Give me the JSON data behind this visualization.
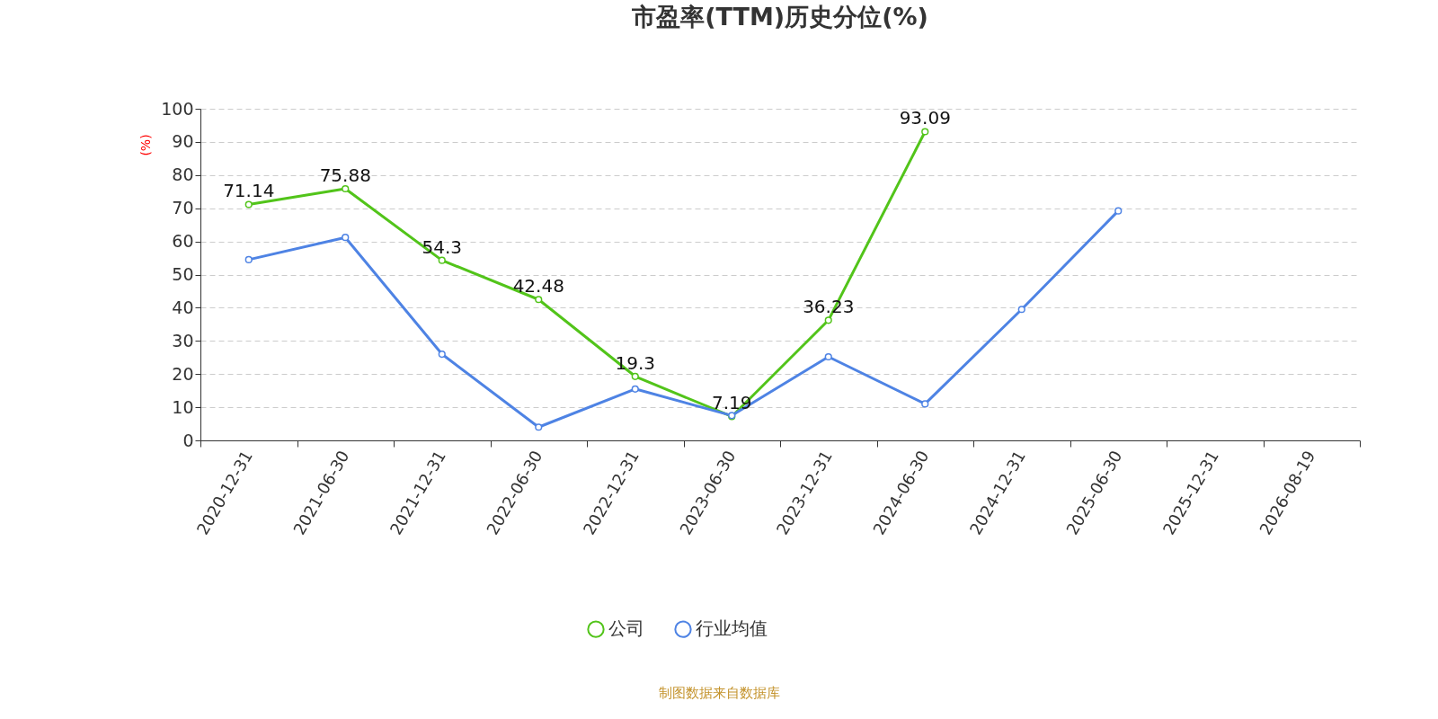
{
  "chart_data": {
    "type": "line",
    "title": "市盈率(TTM)历史分位(%)",
    "ylabel": "(%)",
    "categories": [
      "2020-12-31",
      "2021-06-30",
      "2021-12-31",
      "2022-06-30",
      "2022-12-31",
      "2023-06-30",
      "2023-12-31",
      "2024-06-30",
      "2024-12-31",
      "2025-06-30",
      "2025-12-31",
      "2026-08-19"
    ],
    "series": [
      {
        "name": "公司",
        "color": "#52c41a",
        "values": [
          71.14,
          75.88,
          54.3,
          42.48,
          19.3,
          7.19,
          36.23,
          93.09,
          null,
          null,
          null,
          null
        ],
        "value_labels": [
          "71.14",
          "75.88",
          "54.3",
          "42.48",
          "19.3",
          "7.19",
          "36.23",
          "93.09",
          null,
          null,
          null,
          null
        ]
      },
      {
        "name": "行业均值",
        "color": "#4e83e4",
        "values": [
          54.5,
          61.2,
          26,
          4,
          15.5,
          7.5,
          25.2,
          11,
          39.5,
          69.2,
          null,
          null
        ]
      }
    ],
    "ylim": [
      0,
      100
    ],
    "yticks": [
      0,
      10,
      20,
      30,
      40,
      50,
      60,
      70,
      80,
      90,
      100
    ],
    "grid": "y",
    "legend": "bottom",
    "marker": "circle",
    "line_style": "solid",
    "annotations": [
      "制图数据来自数据库"
    ]
  }
}
